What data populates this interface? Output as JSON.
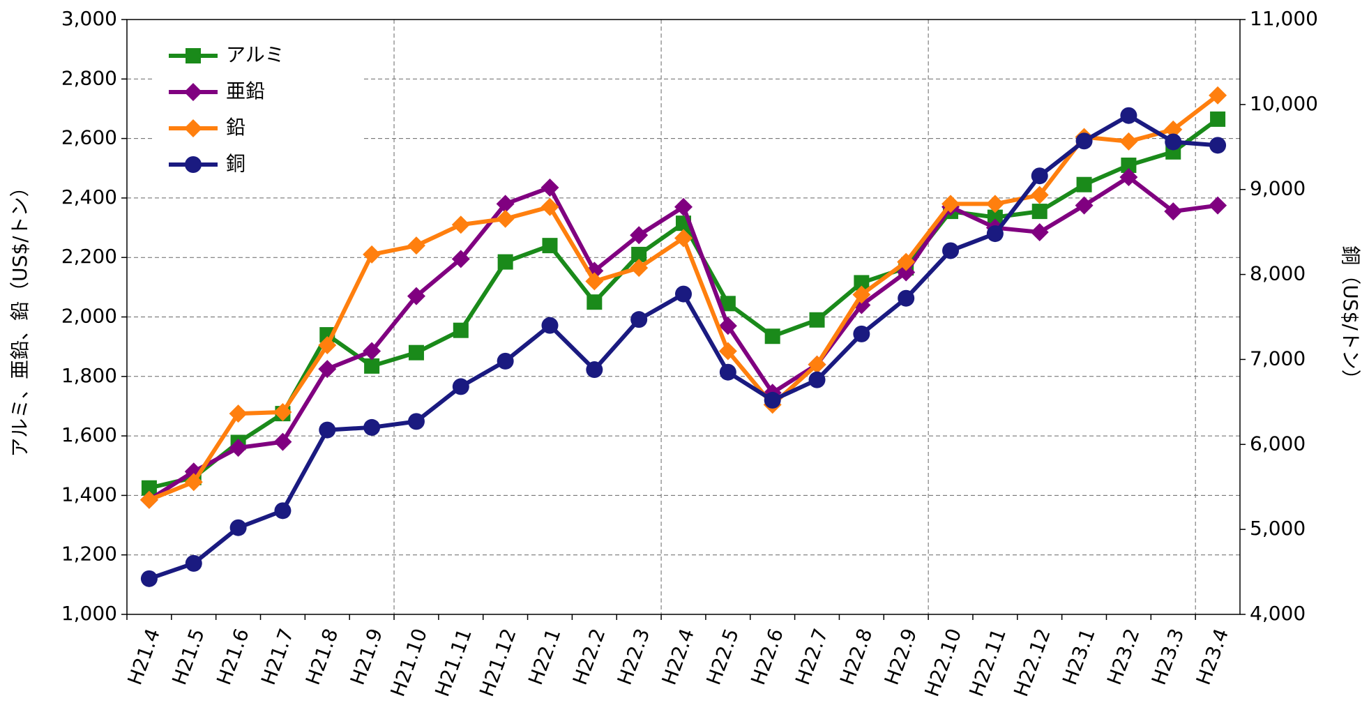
{
  "chart_data": {
    "type": "line",
    "ylabel": "アルミ、亜鉛、鉛（US$/トン）",
    "y2label": "銅（US$/トン）",
    "categories": [
      "H21.4",
      "H21.5",
      "H21.6",
      "H21.7",
      "H21.8",
      "H21.9",
      "H21.10",
      "H21.11",
      "H21.12",
      "H22.1",
      "H22.2",
      "H22.3",
      "H22.4",
      "H22.5",
      "H22.6",
      "H22.7",
      "H22.8",
      "H22.9",
      "H22.10",
      "H22.11",
      "H22.12",
      "H23.1",
      "H23.2",
      "H23.3",
      "H23.4"
    ],
    "series": [
      {
        "name": "アルミ",
        "color": "#1a8a1a",
        "marker": "square",
        "values": [
          1425,
          1460,
          1578,
          1675,
          1940,
          1835,
          1880,
          1955,
          2185,
          2240,
          2050,
          2210,
          2315,
          2045,
          1935,
          1990,
          2115,
          2165,
          2355,
          2335,
          2355,
          2445,
          2510,
          2555,
          2665
        ]
      },
      {
        "name": "亜鉛",
        "color": "#800080",
        "marker": "diamond",
        "values": [
          1385,
          1480,
          1560,
          1580,
          1825,
          1885,
          2070,
          2195,
          2380,
          2435,
          2155,
          2275,
          2370,
          1970,
          1745,
          1840,
          2040,
          2150,
          2370,
          2300,
          2285,
          2375,
          2470,
          2355,
          2375
        ]
      },
      {
        "name": "鉛",
        "color": "#ff7f0e",
        "marker": "diamond",
        "values": [
          1385,
          1445,
          1675,
          1680,
          1905,
          2210,
          2240,
          2310,
          2330,
          2370,
          2120,
          2165,
          2265,
          1885,
          1705,
          1840,
          2075,
          2185,
          2380,
          2380,
          2410,
          2605,
          2590,
          2630,
          2745
        ]
      },
      {
        "name": "銅",
        "color": "#1a1a80",
        "marker": "circle",
        "axis": "y2",
        "values": [
          4420,
          4600,
          5020,
          5220,
          6170,
          6200,
          6270,
          6680,
          6980,
          7400,
          6880,
          7470,
          7770,
          6850,
          6520,
          6760,
          7300,
          7720,
          8280,
          8480,
          9160,
          9570,
          9870,
          9560,
          9520
        ]
      }
    ],
    "ylim": [
      1000,
      3000
    ],
    "yticks": [
      {
        "value": 1000,
        "label": "1,000"
      },
      {
        "value": 1200,
        "label": "1,200"
      },
      {
        "value": 1400,
        "label": "1,400"
      },
      {
        "value": 1600,
        "label": "1,600"
      },
      {
        "value": 1800,
        "label": "1,800"
      },
      {
        "value": 2000,
        "label": "2,000"
      },
      {
        "value": 2200,
        "label": "2,200"
      },
      {
        "value": 2400,
        "label": "2,400"
      },
      {
        "value": 2600,
        "label": "2,600"
      },
      {
        "value": 2800,
        "label": "2,800"
      },
      {
        "value": 3000,
        "label": "3,000"
      }
    ],
    "y2lim": [
      4000,
      11000
    ],
    "y2ticks": [
      {
        "value": 4000,
        "label": "4,000"
      },
      {
        "value": 5000,
        "label": "5,000"
      },
      {
        "value": 6000,
        "label": "6,000"
      },
      {
        "value": 7000,
        "label": "7,000"
      },
      {
        "value": 8000,
        "label": "8,000"
      },
      {
        "value": 9000,
        "label": "9,000"
      },
      {
        "value": 10000,
        "label": "10,000"
      },
      {
        "value": 11000,
        "label": "11,000"
      }
    ],
    "grid": true,
    "legend": "upper left"
  }
}
